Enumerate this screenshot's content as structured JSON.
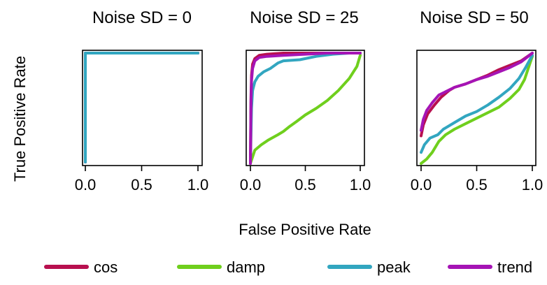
{
  "chart_data": {
    "type": "line",
    "xlabel": "False Positive Rate",
    "ylabel": "True Positive Rate",
    "colors": {
      "cos": "#b8104f",
      "damp": "#6fcf1d",
      "peak": "#32a6c0",
      "trend": "#a514b5"
    },
    "legend": {
      "placement": "bottom",
      "entries": [
        "cos",
        "damp",
        "peak",
        "trend"
      ]
    },
    "panels": [
      {
        "title": "Noise SD = 0",
        "xlim": [
          0,
          1
        ],
        "ylim": [
          0,
          1
        ],
        "xticks": [
          "0.0",
          "0.5",
          "1.0"
        ],
        "series": [
          {
            "name": "cos",
            "x": [
              0,
              0,
              1
            ],
            "y": [
              0,
              1,
              1
            ]
          },
          {
            "name": "damp",
            "x": [
              0,
              0,
              1
            ],
            "y": [
              0,
              1,
              1
            ]
          },
          {
            "name": "trend",
            "x": [
              0,
              0,
              1
            ],
            "y": [
              0,
              1,
              1
            ]
          },
          {
            "name": "peak",
            "x": [
              0,
              0,
              1
            ],
            "y": [
              0,
              1,
              1
            ]
          }
        ]
      },
      {
        "title": "Noise SD = 25",
        "xlim": [
          0,
          1
        ],
        "ylim": [
          0,
          1
        ],
        "xticks": [
          "0.0",
          "0.5",
          "1.0"
        ],
        "series": [
          {
            "name": "damp",
            "x": [
              0,
              0.04,
              0.1,
              0.16,
              0.25,
              0.3,
              0.35,
              0.42,
              0.5,
              0.6,
              0.7,
              0.8,
              0.9,
              0.97,
              1.0
            ],
            "y": [
              0,
              0.12,
              0.17,
              0.21,
              0.26,
              0.29,
              0.33,
              0.38,
              0.44,
              0.5,
              0.57,
              0.66,
              0.77,
              0.88,
              0.98
            ]
          },
          {
            "name": "peak",
            "x": [
              0,
              0.01,
              0.02,
              0.04,
              0.07,
              0.12,
              0.18,
              0.25,
              0.3,
              0.45,
              0.6,
              0.75,
              0.9,
              1.0
            ],
            "y": [
              0,
              0.5,
              0.66,
              0.74,
              0.79,
              0.83,
              0.86,
              0.91,
              0.93,
              0.94,
              0.97,
              0.99,
              1.0,
              1.0
            ]
          },
          {
            "name": "cos",
            "x": [
              0,
              0.005,
              0.01,
              0.02,
              0.04,
              0.08,
              0.15,
              0.3,
              0.5,
              0.7,
              1.0
            ],
            "y": [
              0,
              0.6,
              0.8,
              0.9,
              0.95,
              0.98,
              0.99,
              1.0,
              1.0,
              1.0,
              1.0
            ]
          },
          {
            "name": "trend",
            "x": [
              0,
              0.005,
              0.01,
              0.02,
              0.04,
              0.08,
              0.15,
              0.3,
              0.5,
              0.7,
              1.0
            ],
            "y": [
              0,
              0.55,
              0.75,
              0.86,
              0.93,
              0.96,
              0.97,
              0.98,
              0.99,
              1.0,
              1.0
            ]
          }
        ]
      },
      {
        "title": "Noise SD = 50",
        "xlim": [
          0,
          1
        ],
        "ylim": [
          0,
          1
        ],
        "xticks": [
          "0.0",
          "0.5",
          "1.0"
        ],
        "series": [
          {
            "name": "damp",
            "x": [
              0,
              0.05,
              0.1,
              0.16,
              0.22,
              0.3,
              0.4,
              0.5,
              0.6,
              0.7,
              0.8,
              0.88,
              0.93,
              0.97,
              1.0
            ],
            "y": [
              0,
              0.04,
              0.1,
              0.2,
              0.26,
              0.31,
              0.36,
              0.41,
              0.46,
              0.51,
              0.59,
              0.67,
              0.76,
              0.88,
              0.97
            ]
          },
          {
            "name": "peak",
            "x": [
              0,
              0.03,
              0.08,
              0.15,
              0.2,
              0.3,
              0.4,
              0.5,
              0.6,
              0.7,
              0.8,
              0.88,
              0.94,
              1.0
            ],
            "y": [
              0.1,
              0.17,
              0.23,
              0.26,
              0.31,
              0.37,
              0.43,
              0.47,
              0.53,
              0.6,
              0.68,
              0.77,
              0.87,
              0.98
            ]
          },
          {
            "name": "cos",
            "x": [
              0,
              0.02,
              0.06,
              0.12,
              0.18,
              0.25,
              0.3,
              0.4,
              0.5,
              0.6,
              0.7,
              0.8,
              0.9,
              1.0
            ],
            "y": [
              0.25,
              0.35,
              0.45,
              0.53,
              0.6,
              0.66,
              0.69,
              0.72,
              0.76,
              0.8,
              0.85,
              0.89,
              0.93,
              1.0
            ]
          },
          {
            "name": "trend",
            "x": [
              0,
              0.02,
              0.05,
              0.1,
              0.16,
              0.22,
              0.3,
              0.4,
              0.5,
              0.6,
              0.7,
              0.8,
              0.9,
              1.0
            ],
            "y": [
              0.3,
              0.4,
              0.48,
              0.55,
              0.62,
              0.65,
              0.69,
              0.72,
              0.76,
              0.79,
              0.83,
              0.87,
              0.92,
              1.0
            ]
          }
        ]
      }
    ]
  }
}
